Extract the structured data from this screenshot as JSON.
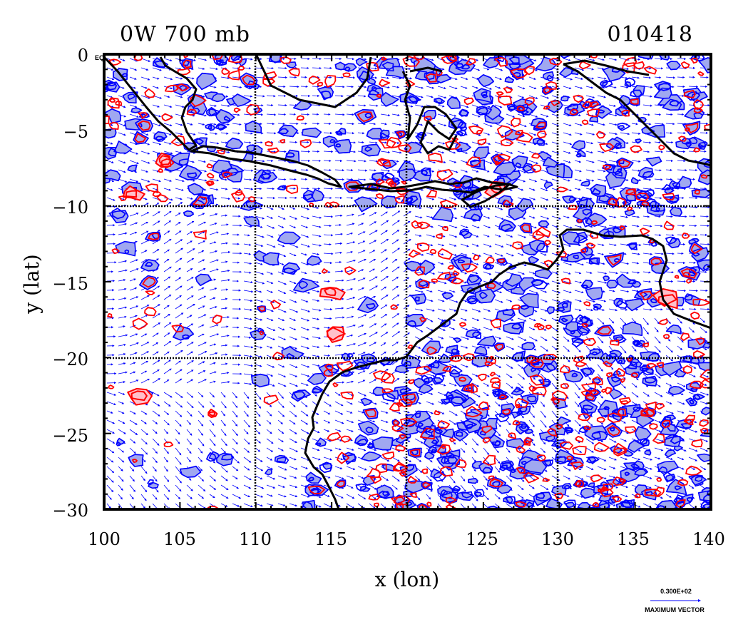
{
  "header": {
    "title_left": "0W 700 mb",
    "title_right": "010418"
  },
  "axes": {
    "xlabel": "x (lon)",
    "ylabel": "y (lat)",
    "x_ticks": [
      "100",
      "105",
      "110",
      "115",
      "120",
      "125",
      "130",
      "135",
      "140"
    ],
    "y_ticks": [
      "0",
      "−5",
      "−10",
      "−15",
      "−20",
      "−25",
      "−30"
    ],
    "corner_label": "EQ"
  },
  "legend": {
    "vector_value": "0.300E+02",
    "vector_label": "MAXIMUM VECTOR"
  },
  "colors": {
    "positive_contour": "#ff0000",
    "positive_fill": "#ffc0cb",
    "negative_contour": "#0000ff",
    "negative_fill": "#a0a8f0",
    "vectors": "#0000ff",
    "coastline": "#000000"
  },
  "chart_data": {
    "type": "heatmap",
    "map": "lat-lon field with wind vectors and coastlines",
    "x_range": [
      100,
      140
    ],
    "y_range": [
      -30,
      0
    ],
    "grid": true,
    "grid_lines_x": [
      110,
      120,
      130
    ],
    "grid_lines_y": [
      -10,
      -20
    ]
  }
}
